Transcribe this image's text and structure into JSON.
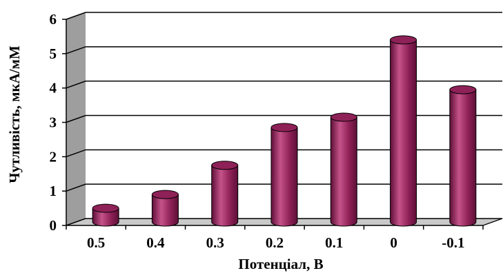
{
  "chart_data": {
    "type": "bar",
    "style": "3d-cylinder",
    "categories": [
      "0.5",
      "0.4",
      "0.3",
      "0.2",
      "0.1",
      "0",
      "-0.1"
    ],
    "values": [
      0.4,
      0.8,
      1.65,
      2.75,
      3.05,
      5.3,
      3.85
    ],
    "xlabel": "Потенціал, В",
    "ylabel": "Чутливість, мкА/мМ",
    "ylim": [
      0,
      6
    ],
    "yticks": [
      "0",
      "1",
      "2",
      "3",
      "4",
      "5",
      "6"
    ],
    "grid": true,
    "colors": {
      "bar": "#8e2157",
      "bar_light": "#c4538a",
      "bar_dark": "#5e0f38",
      "wall": "#9e9e9e",
      "floor": "#c9c9c9",
      "gridline": "#000000"
    }
  }
}
